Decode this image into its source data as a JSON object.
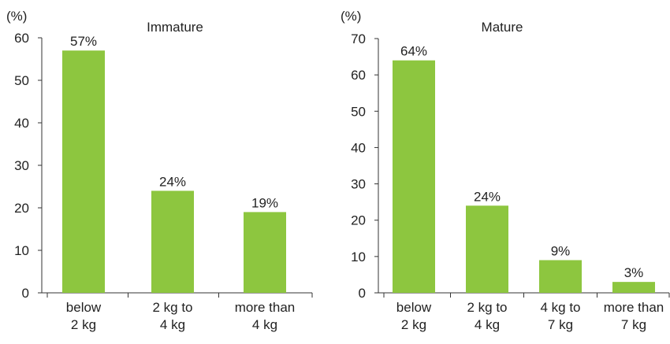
{
  "chart_data": [
    {
      "type": "bar",
      "title": "Immature",
      "ylabel": "(%)",
      "ylim": [
        0,
        60
      ],
      "yticks": [
        0,
        10,
        20,
        30,
        40,
        50,
        60
      ],
      "categories": [
        [
          "below",
          "2 kg"
        ],
        [
          "2 kg to",
          "4 kg"
        ],
        [
          "more than",
          "4 kg"
        ]
      ],
      "values": [
        57,
        24,
        19
      ],
      "data_labels": [
        "57%",
        "24%",
        "19%"
      ],
      "bar_color": "#8dc63f",
      "grid": false
    },
    {
      "type": "bar",
      "title": "Mature",
      "ylabel": "(%)",
      "ylim": [
        0,
        70
      ],
      "yticks": [
        0,
        10,
        20,
        30,
        40,
        50,
        60,
        70
      ],
      "categories": [
        [
          "below",
          "2 kg"
        ],
        [
          "2 kg to",
          "4 kg"
        ],
        [
          "4 kg to",
          "7 kg"
        ],
        [
          "more than",
          "7 kg"
        ]
      ],
      "values": [
        64,
        24,
        9,
        3
      ],
      "data_labels": [
        "64%",
        "24%",
        "9%",
        "3%"
      ],
      "bar_color": "#8dc63f",
      "grid": false
    }
  ]
}
